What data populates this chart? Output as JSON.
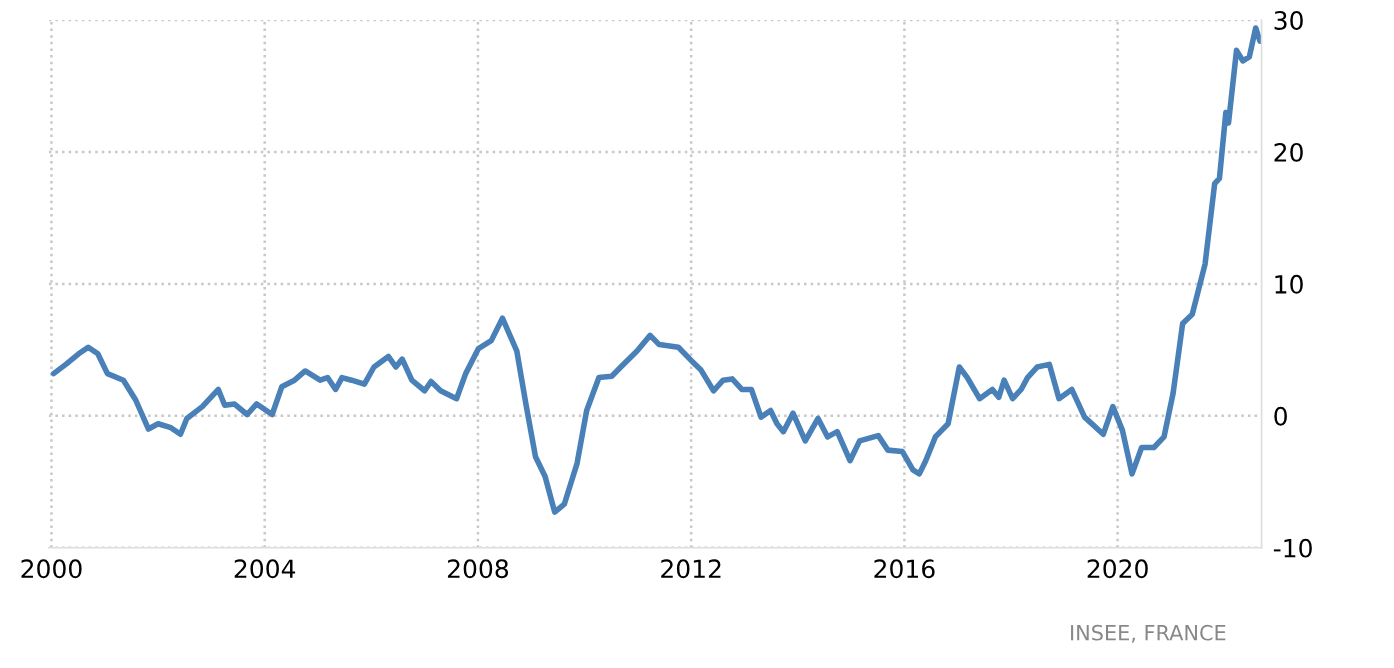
{
  "chart_data": {
    "type": "line",
    "annotations": [
      "INSEE, FRANCE"
    ],
    "x": [
      2000.04,
      2000.27,
      2000.51,
      2000.69,
      2000.87,
      2001.05,
      2001.35,
      2001.58,
      2001.82,
      2002.0,
      2002.24,
      2002.42,
      2002.54,
      2002.83,
      2003.13,
      2003.25,
      2003.43,
      2003.67,
      2003.85,
      2004.14,
      2004.32,
      2004.56,
      2004.76,
      2005.04,
      2005.18,
      2005.33,
      2005.45,
      2005.63,
      2005.87,
      2006.05,
      2006.32,
      2006.46,
      2006.58,
      2006.76,
      2007.0,
      2007.12,
      2007.3,
      2007.6,
      2007.77,
      2008.01,
      2008.25,
      2008.46,
      2008.73,
      2008.9,
      2009.08,
      2009.26,
      2009.44,
      2009.62,
      2009.86,
      2010.04,
      2010.27,
      2010.51,
      2010.68,
      2010.98,
      2011.23,
      2011.4,
      2011.76,
      2012.0,
      2012.18,
      2012.42,
      2012.6,
      2012.77,
      2012.95,
      2013.13,
      2013.31,
      2013.49,
      2013.61,
      2013.73,
      2013.91,
      2014.14,
      2014.38,
      2014.56,
      2014.74,
      2014.98,
      2015.16,
      2015.51,
      2015.69,
      2015.96,
      2016.16,
      2016.28,
      2016.4,
      2016.58,
      2016.82,
      2017.03,
      2017.18,
      2017.41,
      2017.65,
      2017.77,
      2017.87,
      2018.03,
      2018.19,
      2018.31,
      2018.49,
      2018.72,
      2018.9,
      2019.14,
      2019.38,
      2019.73,
      2019.91,
      2020.09,
      2020.27,
      2020.45,
      2020.68,
      2020.87,
      2021.04,
      2021.22,
      2021.4,
      2021.64,
      2021.82,
      2021.91,
      2022.03,
      2022.08,
      2022.23,
      2022.35,
      2022.47,
      2022.59,
      2022.67
    ],
    "series": [
      {
        "color": "#4a80b8",
        "values": [
          3.2,
          3.9,
          4.7,
          5.2,
          4.7,
          3.2,
          2.7,
          1.2,
          -1.0,
          -0.6,
          -0.9,
          -1.4,
          -0.2,
          0.7,
          2.0,
          0.8,
          0.9,
          0.1,
          0.9,
          0.1,
          2.2,
          2.7,
          3.4,
          2.7,
          2.9,
          2.0,
          2.9,
          2.7,
          2.4,
          3.7,
          4.5,
          3.7,
          4.3,
          2.7,
          1.9,
          2.6,
          1.9,
          1.3,
          3.2,
          5.1,
          5.7,
          7.4,
          4.9,
          0.9,
          -3.1,
          -4.6,
          -7.3,
          -6.7,
          -3.6,
          0.4,
          2.9,
          3.0,
          3.7,
          4.9,
          6.1,
          5.4,
          5.2,
          4.2,
          3.5,
          1.9,
          2.7,
          2.8,
          2.0,
          2.0,
          -0.1,
          0.4,
          -0.6,
          -1.2,
          0.2,
          -1.9,
          -0.2,
          -1.6,
          -1.2,
          -3.4,
          -1.9,
          -1.5,
          -2.6,
          -2.7,
          -4.1,
          -4.4,
          -3.4,
          -1.6,
          -0.6,
          3.7,
          2.9,
          1.3,
          2.0,
          1.4,
          2.7,
          1.3,
          2.0,
          2.9,
          3.7,
          3.9,
          1.3,
          2.0,
          -0.1,
          -1.4,
          0.7,
          -1.1,
          -4.4,
          -2.4,
          -2.4,
          -1.6,
          1.7,
          7.0,
          7.7,
          11.5,
          17.6,
          18.0,
          23.0,
          22.2,
          27.7,
          26.9,
          27.2,
          29.4,
          28.4
        ]
      }
    ],
    "xlim": [
      1999.95,
      2022.7
    ],
    "ylim": [
      -10,
      30
    ],
    "xticks": [
      2000,
      2004,
      2008,
      2012,
      2016,
      2020
    ],
    "yticks": [
      -10,
      0,
      10,
      20,
      30
    ],
    "grid": true
  }
}
